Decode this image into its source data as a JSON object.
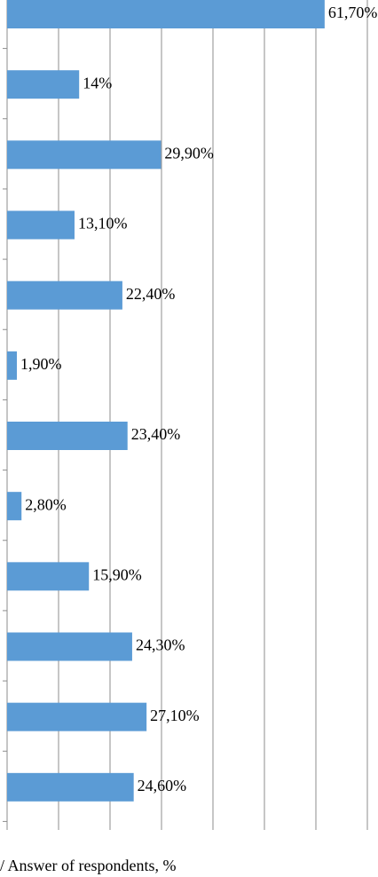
{
  "chart_data": {
    "type": "hbar",
    "x_axis_label": "/ Answer of respondents, %",
    "categories": [
      null,
      null,
      null,
      null,
      null,
      null,
      null,
      null,
      null,
      null,
      null,
      null
    ],
    "values": [
      61.7,
      14,
      29.9,
      13.1,
      22.4,
      1.9,
      23.4,
      2.8,
      15.9,
      24.3,
      27.1,
      24.6
    ],
    "value_labels": [
      "61,70%",
      "14%",
      "29,90%",
      "13,10%",
      "22,40%",
      "1,90%",
      "23,40%",
      "2,80%",
      "15,90%",
      "24,30%",
      "27,10%",
      "24,60%"
    ],
    "color": "#5b9bd5",
    "xlim": [
      0,
      70
    ],
    "xticks": [
      0,
      10,
      20,
      30,
      40,
      50,
      60,
      70
    ],
    "grid": true
  }
}
